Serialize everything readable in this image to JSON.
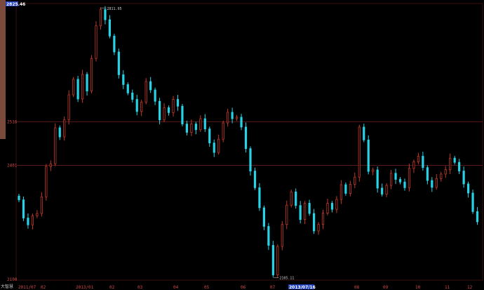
{
  "window": {
    "corner_label": "大智慧",
    "top_price_badge": "2825.46"
  },
  "colors": {
    "background": "#000000",
    "up": "#c0392b",
    "down": "#27d3e6",
    "grid": "#5a1a1a",
    "axis_text": "#c8c8c8",
    "label_red": "#d24b4b",
    "badge_bg": "#1f3fbf"
  },
  "chart_data": {
    "type": "candlestick",
    "y_axis": {
      "range": [
        2100,
        2826
      ],
      "labels": [
        "2825.46",
        "2516",
        "2401",
        "2100"
      ]
    },
    "x_axis": {
      "labels": [
        "2011/07",
        "02",
        "2013/01",
        "02",
        "03",
        "04",
        "05",
        "06",
        "07",
        "2013/07/16",
        "08",
        "09",
        "10",
        "11",
        "12"
      ]
    },
    "annotations": {
      "high": "2811.95",
      "low": "2105.11"
    },
    "gridlines": [
      2516,
      2401
    ],
    "series": [
      {
        "values": [
          2310,
          2262,
          2244,
          2268,
          2274,
          2318,
          2398,
          2405,
          2500,
          2476,
          2521,
          2587,
          2628,
          2576,
          2641,
          2597,
          2683,
          2769,
          2812,
          2785,
          2742,
          2700,
          2640,
          2614,
          2592,
          2575,
          2543,
          2568,
          2622,
          2600,
          2570,
          2521,
          2553,
          2540,
          2575,
          2557,
          2510,
          2488,
          2510,
          2495,
          2524,
          2497,
          2460,
          2435,
          2470,
          2513,
          2541,
          2524,
          2528,
          2502,
          2445,
          2386,
          2342,
          2289,
          2240,
          2190,
          2112,
          2187,
          2245,
          2296,
          2331,
          2295,
          2258,
          2301,
          2274,
          2228,
          2245,
          2275,
          2301,
          2285,
          2311,
          2350,
          2327,
          2351,
          2370,
          2502,
          2468,
          2385,
          2389,
          2341,
          2325,
          2348,
          2380,
          2364,
          2357,
          2342,
          2393,
          2410,
          2425,
          2395,
          2361,
          2343,
          2366,
          2378,
          2390,
          2420,
          2409,
          2386,
          2352,
          2328,
          2279,
          2252
        ]
      }
    ]
  }
}
